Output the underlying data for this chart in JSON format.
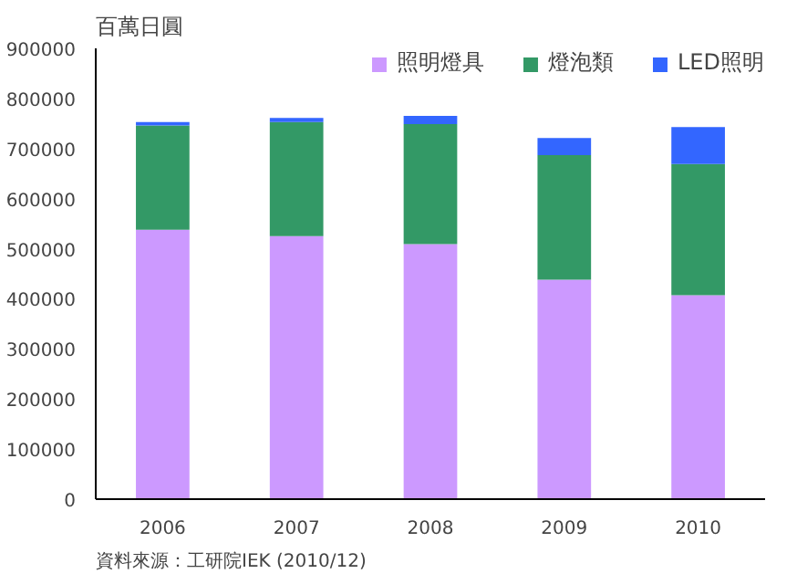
{
  "chart_data": {
    "type": "bar",
    "stacked": true,
    "ylabel": "百萬日圓",
    "categories": [
      "2006",
      "2007",
      "2008",
      "2009",
      "2010"
    ],
    "series": [
      {
        "name": "照明燈具",
        "color": "#cc99ff",
        "values": [
          538000,
          525000,
          509000,
          438000,
          407000
        ]
      },
      {
        "name": "燈泡類",
        "color": "#339966",
        "values": [
          208000,
          228000,
          240000,
          249000,
          262000
        ]
      },
      {
        "name": "LED照明",
        "color": "#3366ff",
        "values": [
          7000,
          8000,
          16000,
          34000,
          74000
        ]
      }
    ],
    "ylim": [
      0,
      900000
    ],
    "yticks": [
      0,
      100000,
      200000,
      300000,
      400000,
      500000,
      600000,
      700000,
      800000,
      900000
    ],
    "grid": false,
    "legend": "top",
    "annotations": [
      "資料來源：工研院IEK (2010/12)"
    ]
  }
}
